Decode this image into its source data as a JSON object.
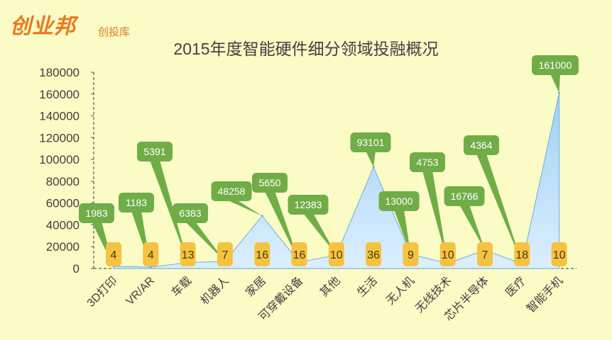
{
  "brand": {
    "logo": "创业邦",
    "sub": "创投库"
  },
  "colors": {
    "background": "#fbfbc6",
    "area_fill_top": "#9fd0f5",
    "area_fill_bottom": "#dcefff",
    "area_stroke": "#6aaee0",
    "value_label": "#70ad47",
    "count_label": "#f5c242"
  },
  "chart_data": {
    "type": "area",
    "title": "2015年度智能硬件细分领域投融概况",
    "categories": [
      "3D打印",
      "VR/AR",
      "车载",
      "机器人",
      "家居",
      "可穿戴设备",
      "其他",
      "生活",
      "无人机",
      "无线技术",
      "芯片半导体",
      "医疗",
      "智能手机"
    ],
    "series": [
      {
        "values": [
          1983,
          1183,
          5391,
          6383,
          48258,
          5650,
          12383,
          93101,
          13000,
          4753,
          16766,
          4364,
          161000
        ]
      }
    ],
    "counts": [
      4,
      4,
      13,
      7,
      16,
      16,
      10,
      36,
      9,
      10,
      7,
      18,
      10
    ],
    "ylim": [
      0,
      180000
    ],
    "yticks": [
      0,
      20000,
      40000,
      60000,
      80000,
      100000,
      120000,
      140000,
      160000,
      180000
    ],
    "grid": false
  }
}
